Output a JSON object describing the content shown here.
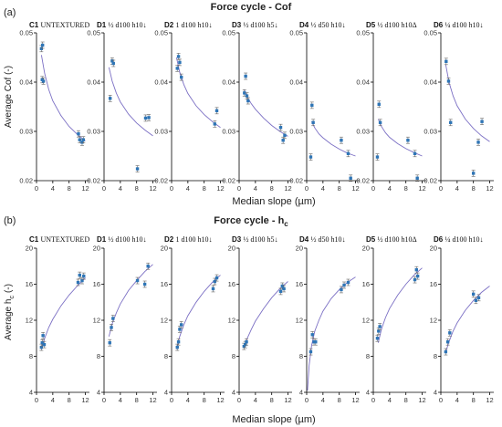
{
  "figure": {
    "panel_a_label": "(a)",
    "panel_b_label": "(b)",
    "xlabel": "Median slope (µm)"
  },
  "colors": {
    "point": "#2e75b6",
    "fit": "#7b6fc4",
    "error": "#666666",
    "axis": "#000000"
  },
  "chart_data": [
    {
      "type": "scatter",
      "title": "Force cycle - Cof",
      "ylabel": "Average Cof (-)",
      "ylim": [
        0.02,
        0.05
      ],
      "yticks": [
        0.02,
        0.03,
        0.04,
        0.05
      ],
      "xlim": [
        0,
        13
      ],
      "xticks": [
        0,
        4,
        8,
        12
      ],
      "panels": [
        {
          "id": "C1",
          "desc": "UNTEXTURED",
          "points": [
            [
              1.2,
              0.0468
            ],
            [
              1.5,
              0.0475
            ],
            [
              1.4,
              0.0405
            ],
            [
              1.7,
              0.0402
            ],
            [
              10.3,
              0.0295
            ],
            [
              10.6,
              0.0283
            ],
            [
              11.2,
              0.0278
            ],
            [
              11.5,
              0.0283
            ]
          ],
          "fit": [
            [
              1.2,
              0.0455
            ],
            [
              2,
              0.0418
            ],
            [
              3,
              0.0385
            ],
            [
              4,
              0.0362
            ],
            [
              6,
              0.0332
            ],
            [
              8,
              0.031
            ],
            [
              10,
              0.0294
            ],
            [
              12,
              0.0281
            ]
          ]
        },
        {
          "id": "D1",
          "desc": "½ d100 h10↓",
          "points": [
            [
              1.5,
              0.0367
            ],
            [
              2.0,
              0.0443
            ],
            [
              2.3,
              0.0438
            ],
            [
              8.2,
              0.0224
            ],
            [
              10.2,
              0.0327
            ],
            [
              11.0,
              0.0328
            ]
          ],
          "fit": [
            [
              1.2,
              0.043
            ],
            [
              2,
              0.0402
            ],
            [
              3,
              0.0378
            ],
            [
              4,
              0.036
            ],
            [
              6,
              0.0335
            ],
            [
              8,
              0.0317
            ],
            [
              10,
              0.0303
            ],
            [
              12,
              0.0291
            ]
          ]
        },
        {
          "id": "D2",
          "desc": "1 d100 h10↓",
          "points": [
            [
              1.4,
              0.0428
            ],
            [
              1.7,
              0.0452
            ],
            [
              2.0,
              0.044
            ],
            [
              2.4,
              0.041
            ],
            [
              10.6,
              0.0315
            ],
            [
              11.1,
              0.0342
            ]
          ],
          "fit": [
            [
              1.2,
              0.045
            ],
            [
              2,
              0.042
            ],
            [
              3,
              0.0395
            ],
            [
              4,
              0.0377
            ],
            [
              6,
              0.0352
            ],
            [
              8,
              0.0334
            ],
            [
              10,
              0.032
            ],
            [
              12,
              0.0308
            ]
          ]
        },
        {
          "id": "D3",
          "desc": "½ d100 h5↓",
          "points": [
            [
              1.3,
              0.0378
            ],
            [
              1.6,
              0.0412
            ],
            [
              1.9,
              0.0372
            ],
            [
              2.2,
              0.0362
            ],
            [
              10.2,
              0.0308
            ],
            [
              10.8,
              0.0282
            ],
            [
              11.2,
              0.0292
            ]
          ],
          "fit": [
            [
              1.2,
              0.0385
            ],
            [
              2,
              0.037
            ],
            [
              3,
              0.0356
            ],
            [
              4,
              0.0345
            ],
            [
              6,
              0.0327
            ],
            [
              8,
              0.0312
            ],
            [
              10,
              0.03
            ],
            [
              12,
              0.029
            ]
          ]
        },
        {
          "id": "D4",
          "desc": "½ d50 h10↓",
          "points": [
            [
              1.0,
              0.0248
            ],
            [
              1.3,
              0.0353
            ],
            [
              1.6,
              0.0318
            ],
            [
              8.5,
              0.0282
            ],
            [
              10.2,
              0.0255
            ],
            [
              10.8,
              0.0205
            ]
          ],
          "fit": [
            [
              1.2,
              0.032
            ],
            [
              2,
              0.0307
            ],
            [
              3,
              0.0295
            ],
            [
              4,
              0.0287
            ],
            [
              6,
              0.0274
            ],
            [
              8,
              0.0264
            ],
            [
              10,
              0.0256
            ],
            [
              12,
              0.025
            ]
          ]
        },
        {
          "id": "D5",
          "desc": "½ d100 h10Δ",
          "points": [
            [
              1.0,
              0.0248
            ],
            [
              1.4,
              0.0355
            ],
            [
              1.7,
              0.0318
            ],
            [
              8.5,
              0.0282
            ],
            [
              10.2,
              0.0255
            ],
            [
              10.8,
              0.0205
            ]
          ],
          "fit": [
            [
              1.2,
              0.0325
            ],
            [
              2,
              0.031
            ],
            [
              3,
              0.0297
            ],
            [
              4,
              0.0288
            ],
            [
              6,
              0.0275
            ],
            [
              8,
              0.0265
            ],
            [
              10,
              0.0257
            ],
            [
              12,
              0.025
            ]
          ]
        },
        {
          "id": "D6",
          "desc": "¼ d100 h10↓",
          "points": [
            [
              1.3,
              0.0442
            ],
            [
              1.9,
              0.0402
            ],
            [
              2.4,
              0.0318
            ],
            [
              8.0,
              0.0215
            ],
            [
              9.2,
              0.0278
            ],
            [
              10.1,
              0.032
            ]
          ],
          "fit": [
            [
              1.2,
              0.0435
            ],
            [
              2,
              0.04
            ],
            [
              3,
              0.0372
            ],
            [
              4,
              0.0352
            ],
            [
              6,
              0.0325
            ],
            [
              8,
              0.0306
            ],
            [
              10,
              0.0291
            ],
            [
              12,
              0.0279
            ]
          ]
        }
      ]
    },
    {
      "type": "scatter",
      "title": "Force cycle - h",
      "title_sub": "c",
      "ylabel": "Average h",
      "ylabel_sub": "c",
      "ylabel_tail": " (-)",
      "ylim": [
        4,
        20
      ],
      "yticks": [
        4,
        8,
        12,
        16,
        20
      ],
      "xlim": [
        0,
        13
      ],
      "xticks": [
        0,
        4,
        8,
        12
      ],
      "panels": [
        {
          "id": "C1",
          "desc": "UNTEXTURED",
          "points": [
            [
              1.2,
              9.0
            ],
            [
              1.4,
              9.5
            ],
            [
              1.6,
              10.3
            ],
            [
              1.9,
              9.3
            ],
            [
              10.2,
              16.2
            ],
            [
              10.6,
              17.0
            ],
            [
              11.2,
              16.4
            ],
            [
              11.6,
              16.9
            ]
          ],
          "fit": [
            [
              1.2,
              8.8
            ],
            [
              2,
              10.0
            ],
            [
              3,
              11.2
            ],
            [
              4,
              12.1
            ],
            [
              6,
              13.6
            ],
            [
              8,
              14.8
            ],
            [
              10,
              15.8
            ],
            [
              12,
              16.7
            ]
          ]
        },
        {
          "id": "D1",
          "desc": "½ d100 h10↓",
          "points": [
            [
              1.4,
              9.5
            ],
            [
              1.8,
              11.2
            ],
            [
              2.2,
              12.2
            ],
            [
              8.2,
              16.4
            ],
            [
              10.0,
              16.0
            ],
            [
              10.8,
              18.0
            ]
          ],
          "fit": [
            [
              1.2,
              10.2
            ],
            [
              2,
              11.6
            ],
            [
              3,
              12.8
            ],
            [
              4,
              13.8
            ],
            [
              6,
              15.3
            ],
            [
              8,
              16.4
            ],
            [
              10,
              17.4
            ],
            [
              12,
              18.2
            ]
          ]
        },
        {
          "id": "D2",
          "desc": "1 d100 h10↓",
          "points": [
            [
              1.4,
              9.0
            ],
            [
              1.7,
              9.6
            ],
            [
              2.0,
              11.0
            ],
            [
              2.4,
              11.5
            ],
            [
              10.2,
              15.5
            ],
            [
              10.6,
              16.3
            ],
            [
              11.1,
              16.7
            ]
          ],
          "fit": [
            [
              1.2,
              8.8
            ],
            [
              2,
              10.2
            ],
            [
              3,
              11.5
            ],
            [
              4,
              12.5
            ],
            [
              6,
              14.0
            ],
            [
              8,
              15.2
            ],
            [
              10,
              16.2
            ],
            [
              12,
              17.0
            ]
          ]
        },
        {
          "id": "D3",
          "desc": "½ d100 h5↓",
          "points": [
            [
              1.2,
              9.1
            ],
            [
              1.5,
              9.3
            ],
            [
              1.8,
              9.6
            ],
            [
              10.2,
              15.2
            ],
            [
              10.6,
              15.8
            ],
            [
              11.0,
              15.5
            ]
          ],
          "fit": [
            [
              1.2,
              9.0
            ],
            [
              2,
              10.0
            ],
            [
              3,
              11.0
            ],
            [
              4,
              11.9
            ],
            [
              6,
              13.3
            ],
            [
              8,
              14.5
            ],
            [
              10,
              15.5
            ],
            [
              12,
              16.3
            ]
          ]
        },
        {
          "id": "D4",
          "desc": "½ d50 h10↓",
          "points": [
            [
              1.0,
              8.5
            ],
            [
              1.4,
              10.4
            ],
            [
              1.8,
              9.6
            ],
            [
              2.2,
              9.6
            ],
            [
              8.5,
              15.4
            ],
            [
              9.2,
              15.9
            ],
            [
              10.2,
              16.2
            ]
          ],
          "fit": [
            [
              0.2,
              4.2
            ],
            [
              0.6,
              7.0
            ],
            [
              1.2,
              9.2
            ],
            [
              2,
              10.8
            ],
            [
              3,
              12.0
            ],
            [
              4,
              13.0
            ],
            [
              6,
              14.4
            ],
            [
              8,
              15.4
            ],
            [
              10,
              16.2
            ],
            [
              12,
              16.8
            ]
          ]
        },
        {
          "id": "D5",
          "desc": "½ d100 h10Δ",
          "points": [
            [
              1.0,
              10.0
            ],
            [
              1.3,
              10.8
            ],
            [
              1.6,
              11.3
            ],
            [
              10.2,
              16.5
            ],
            [
              10.6,
              17.6
            ],
            [
              10.9,
              16.9
            ]
          ],
          "fit": [
            [
              1.2,
              9.5
            ],
            [
              2,
              11.0
            ],
            [
              3,
              12.3
            ],
            [
              4,
              13.3
            ],
            [
              6,
              14.8
            ],
            [
              8,
              16.0
            ],
            [
              10,
              17.0
            ],
            [
              12,
              17.8
            ]
          ]
        },
        {
          "id": "D6",
          "desc": "¼ d100 h10↓",
          "points": [
            [
              1.2,
              8.5
            ],
            [
              1.7,
              9.6
            ],
            [
              2.2,
              10.6
            ],
            [
              8.0,
              14.9
            ],
            [
              8.6,
              14.2
            ],
            [
              9.3,
              14.5
            ]
          ],
          "fit": [
            [
              1.2,
              8.5
            ],
            [
              2,
              9.6
            ],
            [
              3,
              10.8
            ],
            [
              4,
              11.7
            ],
            [
              6,
              13.1
            ],
            [
              8,
              14.2
            ],
            [
              10,
              15.1
            ],
            [
              12,
              15.8
            ]
          ]
        }
      ]
    }
  ]
}
